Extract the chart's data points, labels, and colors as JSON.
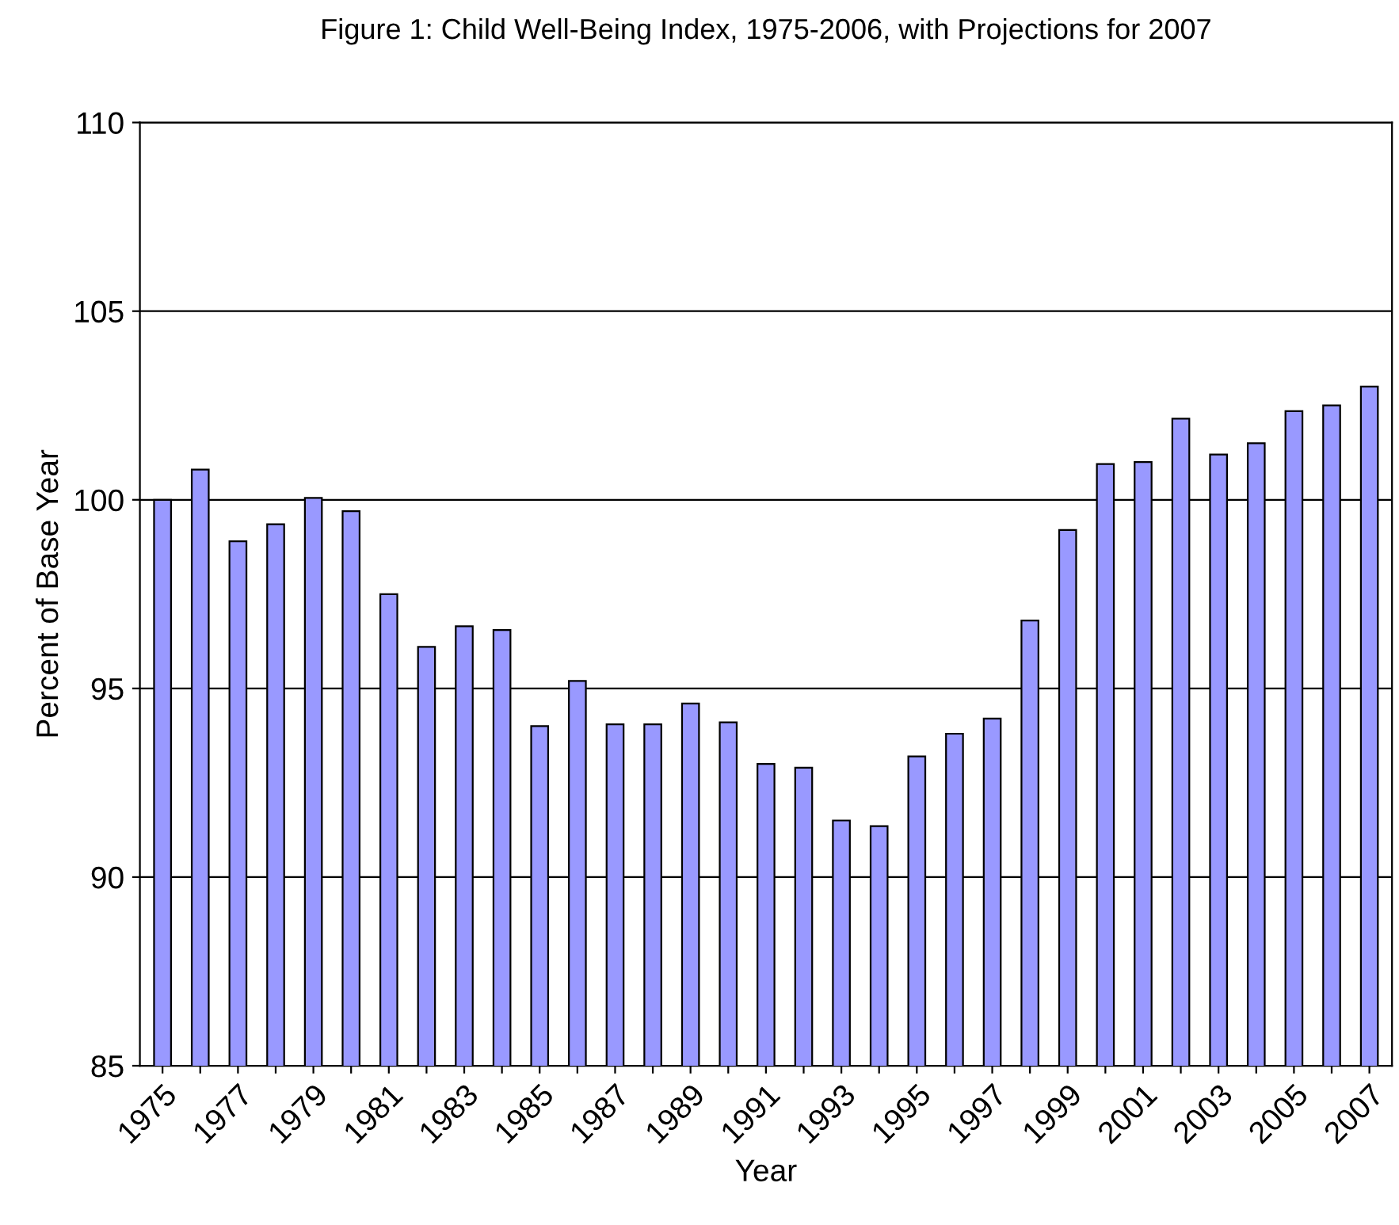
{
  "chart_data": {
    "type": "bar",
    "title": "Figure 1: Child Well-Being Index, 1975-2006, with Projections for 2007",
    "xlabel": "Year",
    "ylabel": "Percent of Base Year",
    "categories": [
      "1975",
      null,
      "1977",
      null,
      "1979",
      null,
      "1981",
      null,
      "1983",
      null,
      "1985",
      null,
      "1987",
      null,
      "1989",
      null,
      "1991",
      null,
      "1993",
      null,
      "1995",
      null,
      "1997",
      null,
      "1999",
      null,
      "2001",
      null,
      "2003",
      null,
      "2005",
      null,
      "2007"
    ],
    "values": [
      100.0,
      100.8,
      98.9,
      99.35,
      100.05,
      99.7,
      97.5,
      96.1,
      96.65,
      96.55,
      94.0,
      95.2,
      94.05,
      94.05,
      94.6,
      94.1,
      93.0,
      92.9,
      91.5,
      91.35,
      93.2,
      93.8,
      94.2,
      96.8,
      99.2,
      100.95,
      101.0,
      102.15,
      101.2,
      101.5,
      102.35,
      102.5,
      103.0
    ],
    "color": "#9999ff",
    "ylim": [
      85,
      110
    ],
    "yticks": [
      85,
      90,
      95,
      100,
      105,
      110
    ],
    "grid": "y"
  }
}
